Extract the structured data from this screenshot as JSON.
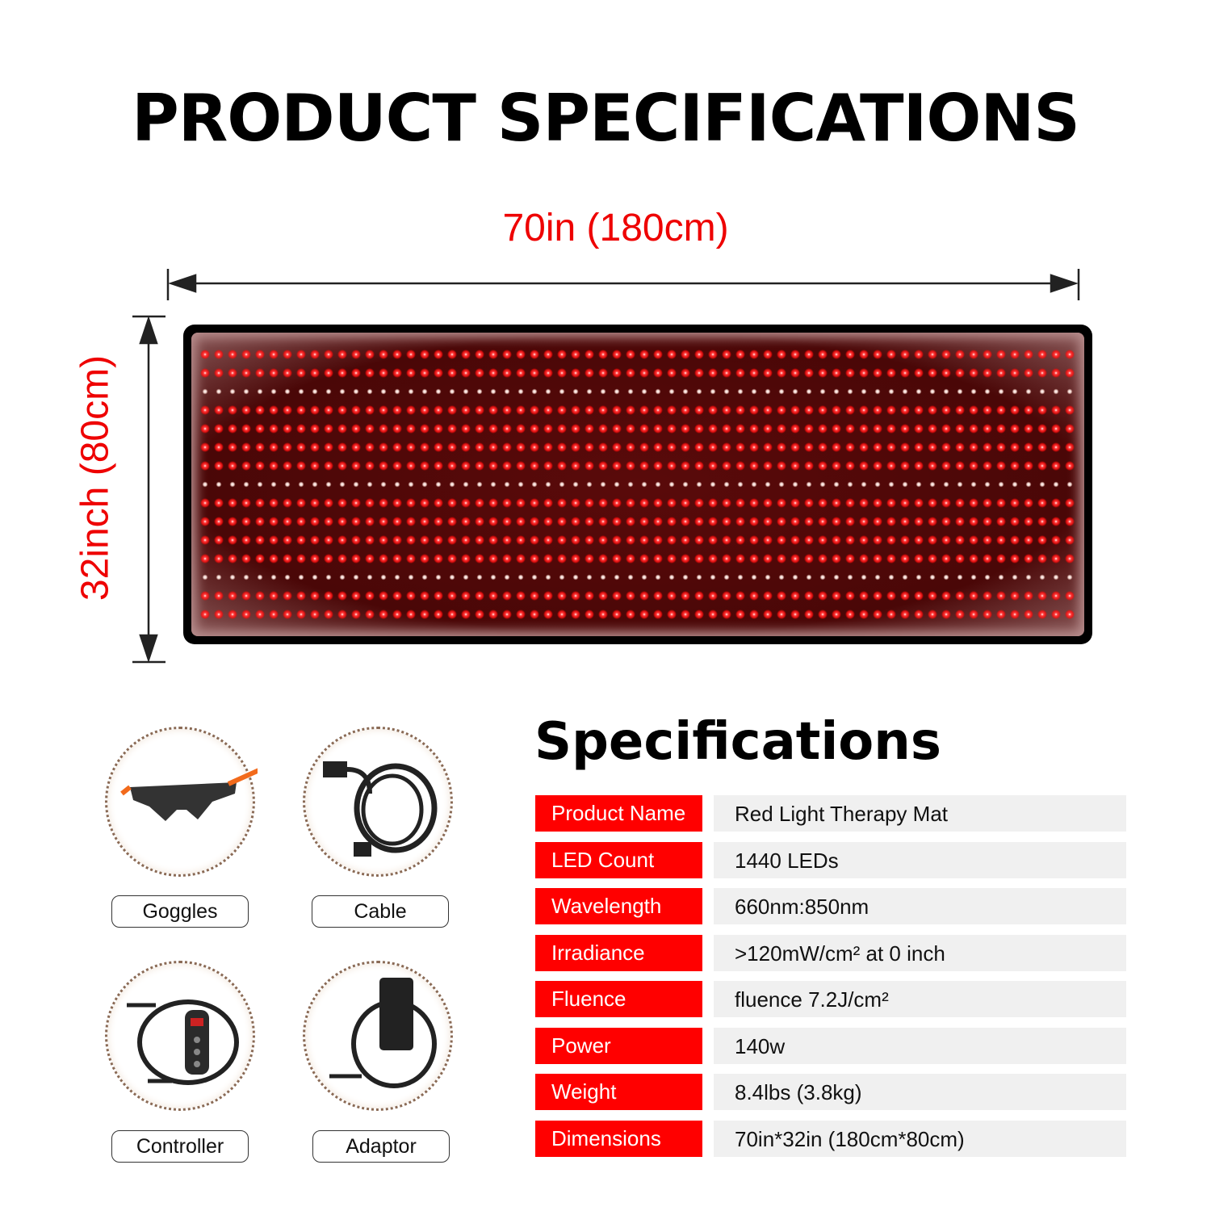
{
  "title": "PRODUCT SPECIFICATIONS",
  "dimensions": {
    "width_label": "70in (180cm)",
    "height_label": "32inch (80cm)"
  },
  "mat": {
    "led_red": "#ff1a1a",
    "led_nir": "#f4dcd4",
    "row_pattern": [
      "red",
      "red",
      "nir",
      "red",
      "red",
      "red",
      "red",
      "nir",
      "red",
      "red",
      "red",
      "red",
      "nir",
      "red",
      "red"
    ]
  },
  "accessories": [
    {
      "label": "Goggles",
      "icon": "goggles-icon"
    },
    {
      "label": "Cable",
      "icon": "power-cable-icon"
    },
    {
      "label": "Controller",
      "icon": "controller-icon"
    },
    {
      "label": "Adaptor",
      "icon": "power-adaptor-icon"
    }
  ],
  "specs": {
    "title": "Specifications",
    "rows": [
      {
        "key": "Product Name",
        "value": "Red Light Therapy Mat"
      },
      {
        "key": "LED Count",
        "value": "1440 LEDs"
      },
      {
        "key": "Wavelength",
        "value": "660nm:850nm"
      },
      {
        "key": "Irradiance",
        "value": ">120mW/cm² at 0 inch"
      },
      {
        "key": "Fluence",
        "value": "fluence 7.2J/cm²"
      },
      {
        "key": "Power",
        "value": "140w"
      },
      {
        "key": "Weight",
        "value": "8.4lbs (3.8kg)"
      },
      {
        "key": "Dimensions",
        "value": "70in*32in (180cm*80cm)"
      }
    ],
    "key_color": "#ff0000"
  }
}
